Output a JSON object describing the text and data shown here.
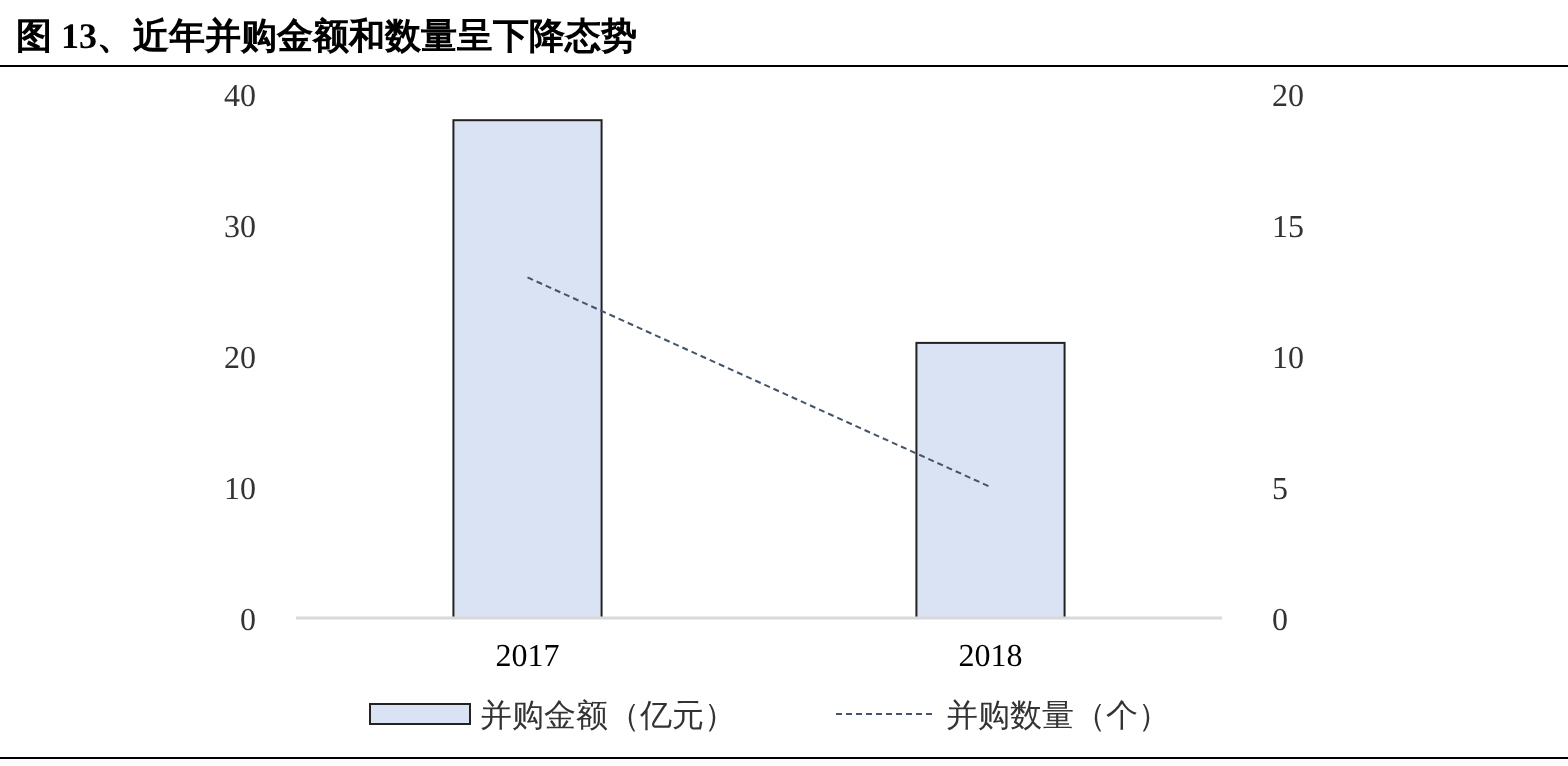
{
  "chart_data": {
    "type": "bar",
    "title": "图 13、近年并购金额和数量呈下降态势",
    "categories": [
      "2017",
      "2018"
    ],
    "series": [
      {
        "name": "并购金额（亿元）",
        "color": "#dae3f3",
        "values": [
          38,
          21
        ]
      },
      {
        "name": "并购数量（个）",
        "type": "line",
        "axis": "y2",
        "color": "#44546a",
        "line_style": "dashed",
        "values": [
          13,
          5
        ]
      }
    ],
    "ylim": [
      0,
      40
    ],
    "yticks": [
      0,
      10,
      20,
      30,
      40
    ],
    "y2lim": [
      0,
      20
    ],
    "y2ticks": [
      0,
      5,
      10,
      15,
      20
    ],
    "legend": "bottom",
    "grid": false
  }
}
